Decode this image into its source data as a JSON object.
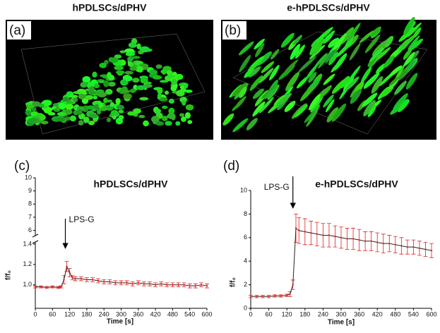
{
  "panels": {
    "a": {
      "label": "(a)",
      "title": "hPDLSCs/dPHV"
    },
    "b": {
      "label": "(b)",
      "title": "e-hPDLSCs/dPHV"
    }
  },
  "chart_data": [
    {
      "type": "line",
      "panel_label": "(c)",
      "title": "hPDLSCs/dPHV",
      "x_label": "Time [s]",
      "y_label": "f/f₀",
      "x": [
        0,
        20,
        40,
        60,
        80,
        90,
        100,
        110,
        120,
        130,
        140,
        160,
        180,
        200,
        220,
        240,
        260,
        280,
        300,
        320,
        340,
        360,
        380,
        400,
        420,
        440,
        460,
        480,
        500,
        520,
        540,
        560,
        580,
        600
      ],
      "series": [
        {
          "color": "#e02020",
          "line_color": "#222222",
          "values": [
            0.98,
            0.98,
            0.975,
            0.98,
            0.975,
            0.98,
            1.05,
            1.18,
            1.12,
            1.07,
            1.06,
            1.06,
            1.05,
            1.05,
            1.04,
            1.03,
            1.03,
            1.02,
            1.02,
            1.02,
            1.01,
            1.02,
            1.01,
            1.01,
            1.0,
            1.01,
            1.0,
            1.0,
            1.0,
            1.0,
            0.99,
            0.99,
            1.0,
            0.99
          ],
          "errors": [
            0.01,
            0.01,
            0.01,
            0.01,
            0.01,
            0.01,
            0.04,
            0.05,
            0.04,
            0.02,
            0.02,
            0.02,
            0.02,
            0.02,
            0.02,
            0.02,
            0.02,
            0.02,
            0.02,
            0.02,
            0.02,
            0.02,
            0.02,
            0.02,
            0.02,
            0.02,
            0.02,
            0.02,
            0.02,
            0.02,
            0.02,
            0.02,
            0.02,
            0.02
          ]
        }
      ],
      "xlim": [
        0,
        600
      ],
      "xticks": [
        0,
        60,
        120,
        180,
        240,
        300,
        360,
        420,
        480,
        540,
        600
      ],
      "y_break": true,
      "ylim": [
        0.77,
        1.42
      ],
      "yticks": [
        {
          "value": 1,
          "label": "1.0"
        },
        1.2,
        1.4
      ],
      "ylim_upper": [
        5.6,
        10
      ],
      "yticks_upper": [
        6,
        7,
        8,
        9,
        10
      ],
      "annotations": [
        {
          "text": "LPS-G",
          "x": 105
        }
      ]
    },
    {
      "type": "line",
      "panel_label": "(d)",
      "title": "e-hPDLSCs/dPHV",
      "x_label": "Time [s]",
      "y_label": "f/f₀",
      "x": [
        0,
        20,
        40,
        60,
        80,
        100,
        120,
        130,
        140,
        150,
        160,
        180,
        200,
        220,
        240,
        260,
        280,
        300,
        320,
        340,
        360,
        380,
        400,
        420,
        440,
        460,
        480,
        500,
        520,
        540,
        560,
        580,
        600
      ],
      "series": [
        {
          "color": "#e02020",
          "line_color": "#222222",
          "values": [
            1.0,
            1.0,
            1.0,
            1.0,
            1.05,
            1.05,
            1.1,
            1.2,
            2.0,
            6.8,
            6.6,
            6.5,
            6.4,
            6.3,
            6.2,
            6.2,
            6.1,
            6.0,
            5.9,
            5.9,
            5.8,
            5.7,
            5.7,
            5.6,
            5.5,
            5.5,
            5.4,
            5.3,
            5.2,
            5.2,
            5.1,
            5.0,
            4.9
          ],
          "errors": [
            0.1,
            0.1,
            0.1,
            0.1,
            0.1,
            0.1,
            0.1,
            0.2,
            0.4,
            1.2,
            1.1,
            1.1,
            1.0,
            1.0,
            1.0,
            1.0,
            0.9,
            0.9,
            0.9,
            0.9,
            0.9,
            0.8,
            0.8,
            0.8,
            0.8,
            0.7,
            0.7,
            0.7,
            0.6,
            0.6,
            0.6,
            0.6,
            0.6
          ]
        }
      ],
      "xlim": [
        0,
        600
      ],
      "xticks": [
        0,
        60,
        120,
        180,
        240,
        300,
        360,
        420,
        480,
        540,
        600
      ],
      "ylim": [
        0,
        10
      ],
      "yticks": [
        0,
        2,
        4,
        6,
        8,
        10
      ],
      "annotations": [
        {
          "text": "LPS-G",
          "x": 140
        }
      ]
    }
  ]
}
